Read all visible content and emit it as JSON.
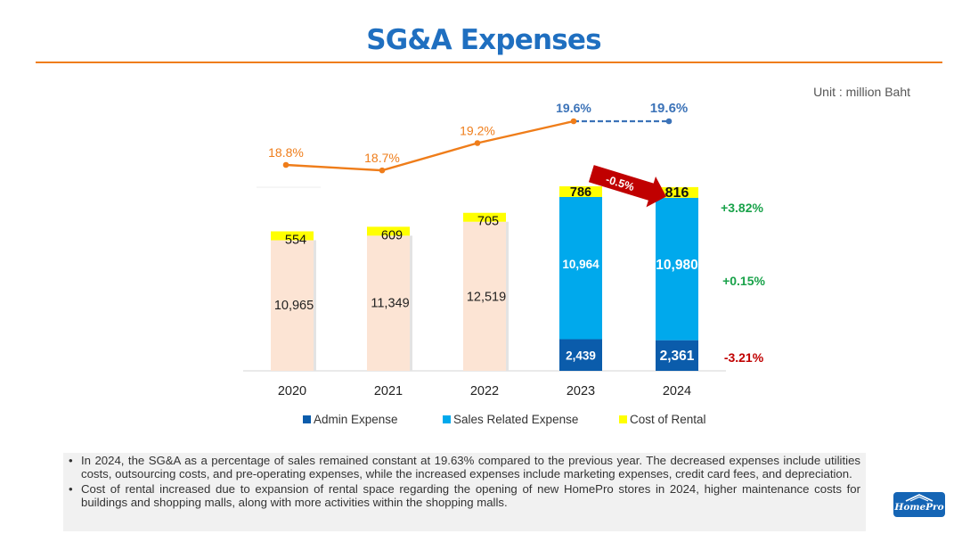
{
  "header": {
    "title": "SG&A Expenses",
    "unit": "Unit : million Baht"
  },
  "chart_data": {
    "type": "bar",
    "categories": [
      "2020",
      "2021",
      "2022",
      "2023",
      "2024"
    ],
    "series": [
      {
        "name": "Admin Expense",
        "values": [
          null,
          null,
          null,
          2439,
          2361
        ],
        "labels": [
          "",
          "",
          "",
          "2,439",
          "2,361"
        ]
      },
      {
        "name": "Sales Related Expense",
        "values": [
          null,
          null,
          null,
          10964,
          10980
        ],
        "labels": [
          "",
          "",
          "",
          "10,964",
          "10,980"
        ]
      },
      {
        "name": "Cost of Rental",
        "values": [
          554,
          609,
          705,
          786,
          816
        ],
        "labels": [
          "554",
          "609",
          "705",
          "786",
          "816"
        ]
      }
    ],
    "combined_admin_sales": {
      "values": [
        10965,
        11349,
        12519,
        null,
        null
      ],
      "labels": [
        "10,965",
        "11,349",
        "12,519",
        "",
        ""
      ]
    },
    "sga_to_sales_line": {
      "values": [
        18.8,
        18.7,
        19.2,
        19.6,
        19.6
      ],
      "labels": [
        "18.8%",
        "18.7%",
        "19.2%",
        "19.6%",
        "19.6%"
      ]
    },
    "changes": {
      "rental": "+3.82%",
      "sales": "+0.15%",
      "admin": "-3.21%"
    },
    "arrow_label": "-0.5%",
    "colors": {
      "admin": "#0b5cab",
      "sales": "#00a9ec",
      "rental": "#ffff00",
      "combined": "#fce4d4",
      "line": "#ef7d1a",
      "line_recent": "#3c73b8",
      "positive": "#19a24a",
      "negative": "#c00000"
    },
    "legend_position": "bottom",
    "grid": false
  },
  "notes": [
    "In 2024, the SG&A as a percentage of sales remained constant at 19.63% compared to the previous year. The decreased expenses include utilities costs, outsourcing costs, and pre-operating expenses, while the increased expenses include marketing expenses, credit card fees, and depreciation.",
    "Cost of rental increased due to expansion of rental space regarding the opening of new HomePro stores in 2024, higher maintenance costs for buildings and shopping malls, along with more activities within the shopping malls."
  ],
  "logo": {
    "text": "HomePro"
  }
}
